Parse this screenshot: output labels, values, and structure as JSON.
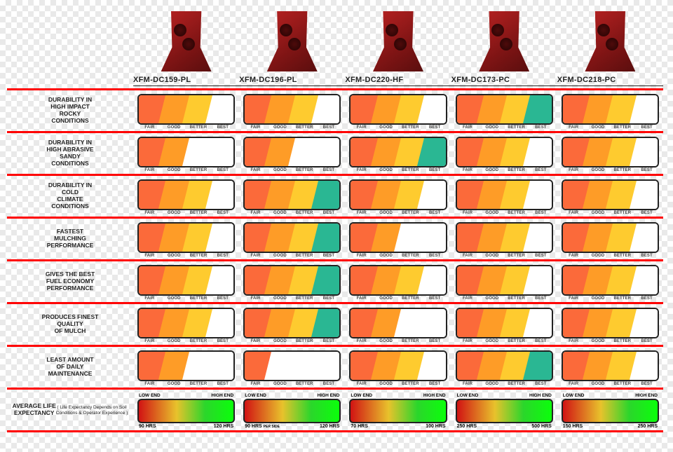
{
  "colors": {
    "fair": "#fb6a3a",
    "good": "#fe9c27",
    "better": "#fecb2f",
    "best": "#2ab793",
    "empty": "#ffffff",
    "divider": "#ff0000",
    "border": "#222222"
  },
  "rating_scale_labels": [
    "FAIR",
    "GOOD",
    "BETTER",
    "BEST"
  ],
  "life_labels": {
    "low": "LOW END",
    "high": "HIGH END"
  },
  "products": [
    {
      "id": "p1",
      "name": "XFM-DC159-PL"
    },
    {
      "id": "p2",
      "name": "XFM-DC196-PL"
    },
    {
      "id": "p3",
      "name": "XFM-DC220-HF"
    },
    {
      "id": "p4",
      "name": "XFM-DC173-PC"
    },
    {
      "id": "p5",
      "name": "XFM-DC218-PC"
    }
  ],
  "rows": [
    {
      "label": "DURABILITY IN\nHIGH IMPACT\nROCKY\nCONDITIONS",
      "ratings": [
        3,
        3,
        3,
        4,
        3
      ]
    },
    {
      "label": "DURABILITY IN\nHIGH ABRASIVE\nSANDY\nCONDITIONS",
      "ratings": [
        2,
        2,
        4,
        3,
        3
      ]
    },
    {
      "label": "DURABILITY IN\nCOLD\nCLIMATE\nCONDITIONS",
      "ratings": [
        3,
        4,
        3,
        3,
        3
      ]
    },
    {
      "label": "FASTEST\nMULCHING\nPERFORMANCE",
      "ratings": [
        3,
        4,
        2,
        3,
        3
      ]
    },
    {
      "label": "GIVES THE BEST\nFUEL ECONOMY\nPERFORMANCE",
      "ratings": [
        3,
        4,
        3,
        3,
        3
      ]
    },
    {
      "label": "PRODUCES FINEST\nQUALITY\nOF MULCH",
      "ratings": [
        3,
        4,
        2,
        3,
        3
      ]
    },
    {
      "label": "LEAST AMOUNT\nOF DAILY\nMAINTENANCE",
      "ratings": [
        2,
        1,
        3,
        4,
        3
      ]
    }
  ],
  "life_row": {
    "label": "AVERAGE LIFE\nEXPECTANCY",
    "sublabel": "( Life Expectancy Depends on Soil\nConditions & Operator Experience )",
    "values": [
      {
        "low": "90 HRS",
        "low_note": "",
        "high": "120 HRS"
      },
      {
        "low": "90 HRS",
        "low_note": "PER SIDE",
        "high": "120 HRS"
      },
      {
        "low": "70 HRS",
        "low_note": "",
        "high": "100 HRS"
      },
      {
        "low": "250 HRS",
        "low_note": "",
        "high": "500 HRS"
      },
      {
        "low": "150 HRS",
        "low_note": "",
        "high": "250 HRS"
      }
    ]
  }
}
